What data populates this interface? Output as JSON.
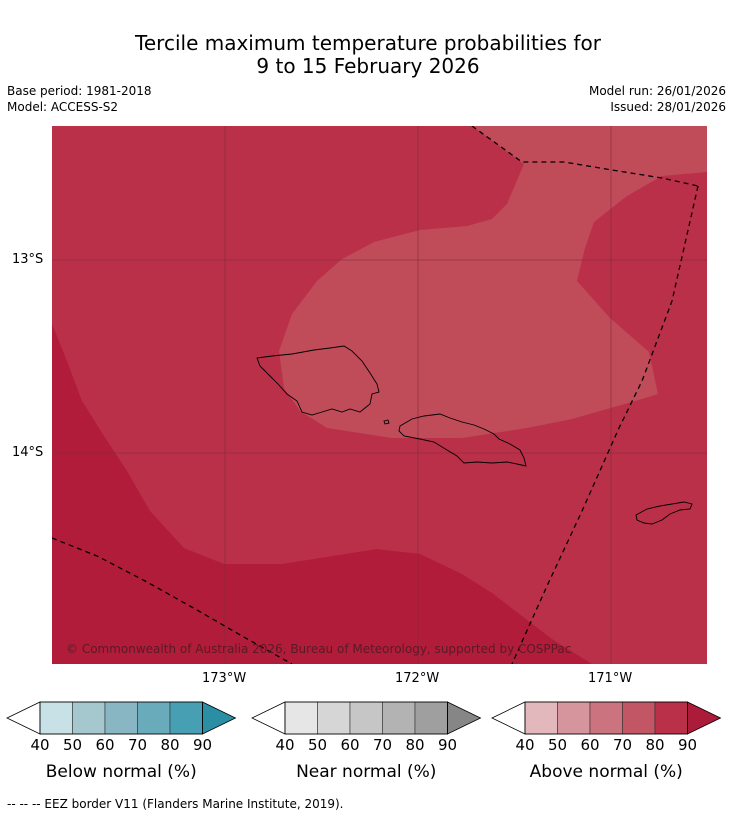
{
  "header": {
    "title_line1": "Tercile maximum temperature probabilities for",
    "title_line2": "9 to 15 February 2026",
    "base_period": "Base period: 1981-2018",
    "model": "Model: ACCESS-S2",
    "model_run": "Model run: 26/01/2026",
    "issued": "Issued: 28/01/2026"
  },
  "map": {
    "lat_labels": [
      "13°S",
      "14°S"
    ],
    "lon_labels": [
      "173°W",
      "172°W",
      "171°W"
    ],
    "copyright": "© Commonwealth of Australia 2026, Bureau of Meteorology, supported by COSPPac",
    "colors": {
      "class_80_90": "#bb3049",
      "class_70_80": "#c04b59",
      "class_90_plus": "#b11c3a",
      "grid": "#7a2a3a",
      "eez": "#000000"
    }
  },
  "colorbars": [
    {
      "name": "below",
      "label": "Below normal (%)",
      "ticks": [
        "40",
        "50",
        "60",
        "70",
        "80",
        "90"
      ],
      "colors": [
        "#c7e1e6",
        "#a5c8ce",
        "#88b7c3",
        "#6aabbb",
        "#469fb3",
        "#2a8ea5"
      ]
    },
    {
      "name": "near",
      "label": "Near normal (%)",
      "ticks": [
        "40",
        "50",
        "60",
        "70",
        "80",
        "90"
      ],
      "colors": [
        "#e6e6e6",
        "#d6d6d6",
        "#c6c6c6",
        "#b3b3b3",
        "#9f9f9f",
        "#868686"
      ]
    },
    {
      "name": "above",
      "label": "Above normal (%)",
      "ticks": [
        "40",
        "50",
        "60",
        "70",
        "80",
        "90"
      ],
      "colors": [
        "#e3b8bd",
        "#d6959d",
        "#cb7480",
        "#c25664",
        "#bb3049",
        "#ac1b39"
      ]
    }
  ],
  "footer": "--  --  -- EEZ border V11 (Flanders Marine Institute, 2019)."
}
